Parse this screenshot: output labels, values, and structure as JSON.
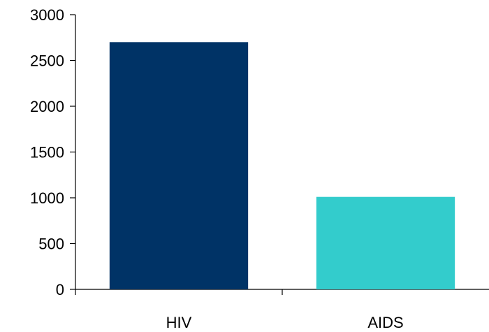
{
  "chart_data": {
    "type": "bar",
    "title": "",
    "xlabel": "",
    "ylabel": "",
    "categories": [
      "HIV",
      "AIDS"
    ],
    "values": [
      2700,
      1010
    ],
    "colors": [
      "#003366",
      "#33CCCC"
    ],
    "ylim": [
      0,
      3000
    ],
    "yticks": [
      0,
      500,
      1000,
      1500,
      2000,
      2500,
      3000
    ],
    "grid": false,
    "legend": "none"
  }
}
